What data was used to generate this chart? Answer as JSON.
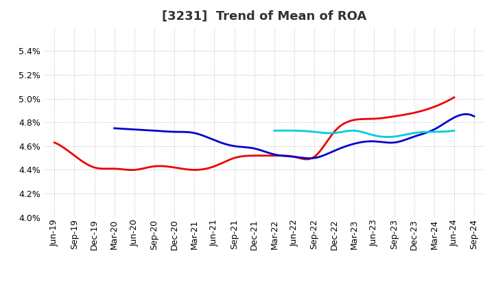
{
  "title": "[3231]  Trend of Mean of ROA",
  "x_labels": [
    "Jun-19",
    "Sep-19",
    "Dec-19",
    "Mar-20",
    "Jun-20",
    "Sep-20",
    "Dec-20",
    "Mar-21",
    "Jun-21",
    "Sep-21",
    "Dec-21",
    "Mar-22",
    "Jun-22",
    "Sep-22",
    "Dec-22",
    "Mar-23",
    "Jun-23",
    "Sep-23",
    "Dec-23",
    "Mar-24",
    "Jun-24",
    "Sep-24"
  ],
  "y_min": 4.0,
  "y_max": 5.6,
  "y_ticks": [
    4.0,
    4.2,
    4.4,
    4.6,
    4.8,
    5.0,
    5.2,
    5.4
  ],
  "series": {
    "3 Years": {
      "color": "#EE0000",
      "values": [
        4.63,
        4.52,
        4.42,
        4.41,
        4.4,
        4.43,
        4.42,
        4.4,
        4.43,
        4.5,
        4.52,
        4.52,
        4.51,
        4.51,
        4.72,
        4.82,
        4.83,
        4.85,
        4.88,
        4.93,
        5.01,
        null
      ]
    },
    "5 Years": {
      "color": "#0000CC",
      "values": [
        null,
        null,
        null,
        4.75,
        4.74,
        4.73,
        4.72,
        4.71,
        4.65,
        4.6,
        4.58,
        4.53,
        4.51,
        4.5,
        4.56,
        4.62,
        4.64,
        4.63,
        4.68,
        4.74,
        4.84,
        4.85
      ]
    },
    "7 Years": {
      "color": "#00CCDD",
      "values": [
        null,
        null,
        null,
        null,
        null,
        null,
        null,
        null,
        null,
        null,
        null,
        4.73,
        4.73,
        4.72,
        4.71,
        4.73,
        4.69,
        4.68,
        4.71,
        4.72,
        4.73,
        null
      ]
    },
    "10 Years": {
      "color": "#007700",
      "values": [
        null,
        null,
        null,
        null,
        null,
        null,
        null,
        null,
        null,
        null,
        null,
        null,
        null,
        null,
        null,
        null,
        null,
        null,
        null,
        null,
        null,
        null
      ]
    }
  },
  "legend_colors": {
    "3 Years": "#EE0000",
    "5 Years": "#0000CC",
    "7 Years": "#00CCDD",
    "10 Years": "#007700"
  },
  "background_color": "#FFFFFF",
  "grid_color": "#999999",
  "title_fontsize": 13,
  "tick_fontsize": 9,
  "legend_fontsize": 10
}
